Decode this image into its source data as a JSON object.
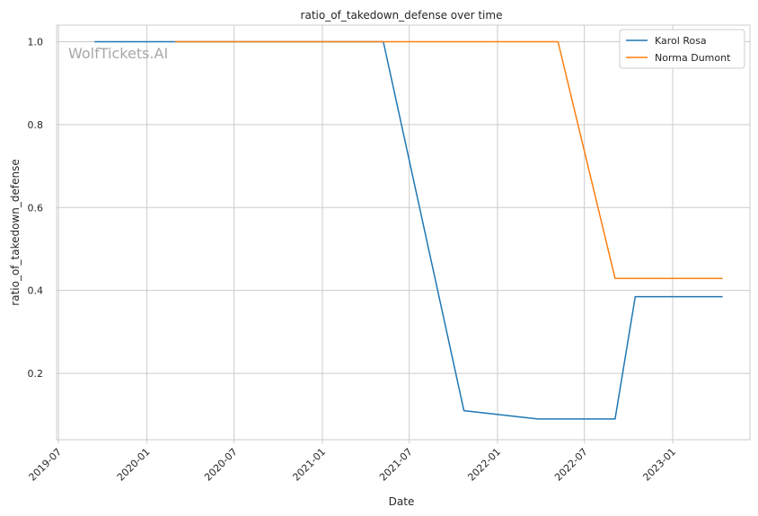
{
  "chart_data": {
    "type": "line",
    "title": "ratio_of_takedown_defense over time",
    "xlabel": "Date",
    "ylabel": "ratio_of_takedown_defense",
    "watermark": "WolfTickets.AI",
    "x_ticks": [
      "2019-07",
      "2020-01",
      "2020-07",
      "2021-01",
      "2021-07",
      "2022-01",
      "2022-07",
      "2023-01"
    ],
    "y_ticks": [
      "0.2",
      "0.4",
      "0.6",
      "0.8",
      "1.0"
    ],
    "xlim": [
      "2019-06-27",
      "2023-06-11"
    ],
    "ylim": [
      0.04,
      1.04
    ],
    "grid": true,
    "legend_position": "top-right",
    "series": [
      {
        "name": "Karol Rosa",
        "color": "#1f77b4",
        "points": [
          {
            "x": "2019-09-14",
            "y": 1.0
          },
          {
            "x": "2021-05-08",
            "y": 1.0
          },
          {
            "x": "2021-10-23",
            "y": 0.11
          },
          {
            "x": "2022-03-26",
            "y": 0.09
          },
          {
            "x": "2022-09-03",
            "y": 0.09
          },
          {
            "x": "2022-10-15",
            "y": 0.385
          },
          {
            "x": "2023-04-15",
            "y": 0.385
          }
        ]
      },
      {
        "name": "Norma Dumont",
        "color": "#ff7f0e",
        "points": [
          {
            "x": "2020-02-29",
            "y": 1.0
          },
          {
            "x": "2022-05-07",
            "y": 1.0
          },
          {
            "x": "2022-09-03",
            "y": 0.429
          },
          {
            "x": "2023-04-15",
            "y": 0.429
          }
        ]
      }
    ]
  }
}
